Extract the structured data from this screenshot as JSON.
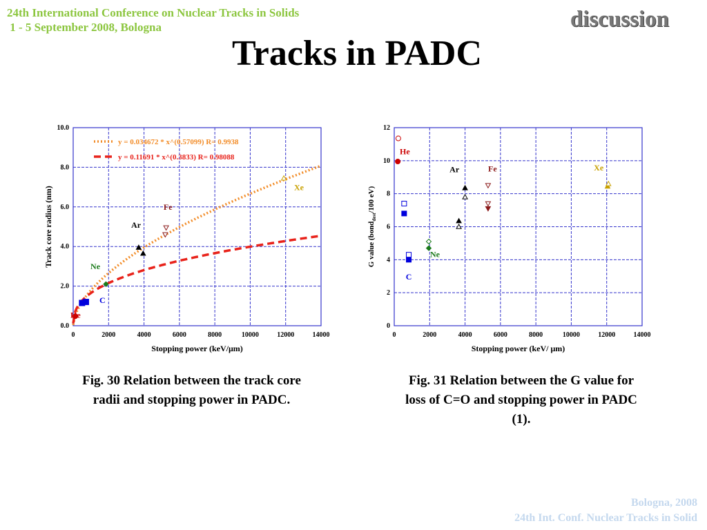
{
  "header": {
    "conference_line1": "24th International Conference on Nuclear Tracks in Solids",
    "conference_line2": " 1 - 5 September 2008, Bologna",
    "section": "discussion",
    "title": "Tracks in PADC"
  },
  "captions": {
    "fig30": "Fig. 30 Relation between the track core radii and stopping power in PADC.",
    "fig31": "Fig. 31 Relation between the G value for loss of C=O and stopping power in PADC (1)."
  },
  "footer": {
    "line1": "Bologna,  2008",
    "line2": "24th Int. Conf. Nuclear Tracks in Solid"
  },
  "colors": {
    "grid": "#3333cc",
    "fit_orange": "#f28c28",
    "fit_red": "#e8221a",
    "He": "#cc0000",
    "C": "#0000dd",
    "Ne": "#1a7a1a",
    "Ar": "#000000",
    "Fe": "#8b1a1a",
    "Xe": "#c8a000"
  },
  "chart_data": [
    {
      "type": "scatter",
      "xlabel": "Stopping power (keV/μm)",
      "ylabel": "Track core radius (nm)",
      "xlim": [
        0,
        14000
      ],
      "ylim": [
        0,
        10
      ],
      "xticks": [
        "0",
        "2000",
        "4000",
        "6000",
        "8000",
        "10000",
        "12000",
        "14000"
      ],
      "yticks": [
        "0.0",
        "2.0",
        "4.0",
        "6.0",
        "8.0",
        "10.0"
      ],
      "grid": true,
      "fits": [
        {
          "label": "y = 0.034672 * x^(0.57099)   R= 0.9938",
          "a": 0.034672,
          "b": 0.57099,
          "color": "#f28c28",
          "style": "dotted"
        },
        {
          "label": "y = 0.11691 * x^(0.3833)   R= 0.98088",
          "a": 0.11691,
          "b": 0.3833,
          "color": "#e8221a",
          "style": "dashed"
        }
      ],
      "series": [
        {
          "name": "He",
          "marker": "circle",
          "filled": true,
          "color": "#cc0000",
          "points": [
            [
              120,
              0.48
            ]
          ],
          "label_at": [
            130,
            0.4
          ]
        },
        {
          "name": "C",
          "marker": "square",
          "filled": true,
          "color": "#0000dd",
          "points": [
            [
              500,
              1.15
            ],
            [
              720,
              1.2
            ]
          ],
          "label_at": [
            1650,
            1.15
          ]
        },
        {
          "name": "Ne",
          "marker": "diamond",
          "filled": true,
          "color": "#1a7a1a",
          "points": [
            [
              1850,
              2.1
            ]
          ],
          "label_at": [
            1250,
            2.85
          ]
        },
        {
          "name": "Ar",
          "marker": "triangle",
          "filled": true,
          "color": "#000000",
          "points": [
            [
              3700,
              3.95
            ],
            [
              3950,
              3.65
            ]
          ],
          "label_at": [
            3550,
            4.95
          ]
        },
        {
          "name": "Fe",
          "marker": "triangle-down",
          "filled": false,
          "color": "#8b1a1a",
          "points": [
            [
              5250,
              4.95
            ],
            [
              5200,
              4.6
            ]
          ],
          "label_at": [
            5350,
            5.85
          ]
        },
        {
          "name": "Xe",
          "marker": "triangle",
          "filled": false,
          "color": "#c8a000",
          "points": [
            [
              11900,
              7.45
            ]
          ],
          "label_at": [
            12750,
            6.85
          ]
        }
      ]
    },
    {
      "type": "scatter",
      "xlabel": "Stopping power (keV/ μm)",
      "ylabel": "G value (bond",
      "ylabel_sub": "dest",
      "ylabel_end": "/100 eV)",
      "xlim": [
        0,
        14000
      ],
      "ylim": [
        0,
        12
      ],
      "xticks": [
        "0",
        "2000",
        "4000",
        "6000",
        "8000",
        "10000",
        "12000",
        "14000"
      ],
      "yticks": [
        "0",
        "2",
        "4",
        "6",
        "8",
        "10",
        "12"
      ],
      "grid": true,
      "series": [
        {
          "name": "He",
          "marker": "circle",
          "color": "#cc0000",
          "points": [
            {
              "x": 200,
              "y": 9.95,
              "filled": true
            },
            {
              "x": 230,
              "y": 11.35,
              "filled": false
            }
          ],
          "label_at": [
            600,
            10.4
          ]
        },
        {
          "name": "C",
          "marker": "square",
          "color": "#0000dd",
          "points": [
            {
              "x": 560,
              "y": 6.8,
              "filled": true
            },
            {
              "x": 560,
              "y": 7.4,
              "filled": false
            },
            {
              "x": 820,
              "y": 4.0,
              "filled": true
            },
            {
              "x": 820,
              "y": 4.3,
              "filled": false
            }
          ],
          "label_at": [
            820,
            2.8
          ]
        },
        {
          "name": "Ne",
          "marker": "diamond",
          "color": "#1a7a1a",
          "points": [
            {
              "x": 1950,
              "y": 4.7,
              "filled": true
            },
            {
              "x": 1950,
              "y": 5.1,
              "filled": false
            }
          ],
          "label_at": [
            2300,
            4.15
          ]
        },
        {
          "name": "Ar",
          "marker": "triangle",
          "color": "#000000",
          "points": [
            {
              "x": 3650,
              "y": 6.35,
              "filled": true
            },
            {
              "x": 3650,
              "y": 6.0,
              "filled": false
            },
            {
              "x": 4000,
              "y": 8.35,
              "filled": true
            },
            {
              "x": 4000,
              "y": 7.8,
              "filled": false
            }
          ],
          "label_at": [
            3400,
            9.3
          ]
        },
        {
          "name": "Fe",
          "marker": "triangle-down",
          "color": "#8b1a1a",
          "points": [
            {
              "x": 5300,
              "y": 8.5,
              "filled": false
            },
            {
              "x": 5300,
              "y": 7.1,
              "filled": true
            },
            {
              "x": 5300,
              "y": 7.4,
              "filled": false
            }
          ],
          "label_at": [
            5550,
            9.35
          ]
        },
        {
          "name": "Xe",
          "marker": "triangle",
          "color": "#c8a000",
          "points": [
            {
              "x": 12050,
              "y": 8.45,
              "filled": true
            },
            {
              "x": 12100,
              "y": 8.6,
              "filled": false
            }
          ],
          "label_at": [
            11550,
            9.4
          ]
        }
      ]
    }
  ]
}
